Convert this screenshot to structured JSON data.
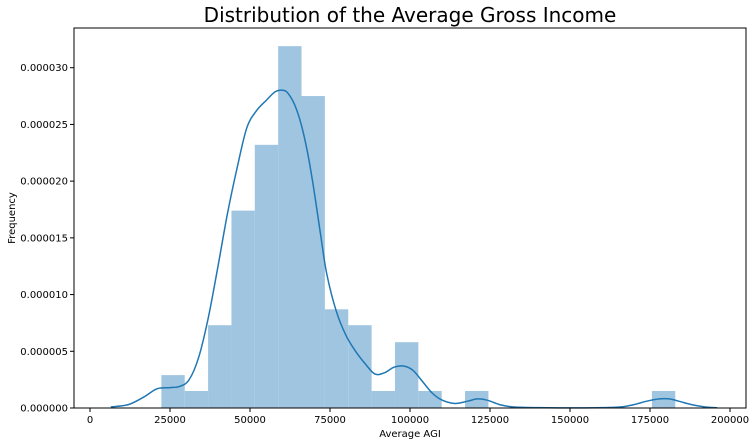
{
  "chart_data": {
    "type": "bar",
    "title": "Distribution of the Average Gross Income",
    "xlabel": "Average AGI",
    "ylabel": "Frequency",
    "xlim": [
      -5000,
      205000
    ],
    "ylim": [
      0,
      3.35e-05
    ],
    "x_ticks": [
      0,
      25000,
      50000,
      75000,
      100000,
      125000,
      150000,
      175000,
      200000
    ],
    "x_tick_labels": [
      "0",
      "25000",
      "50000",
      "75000",
      "100000",
      "125000",
      "150000",
      "175000",
      "200000"
    ],
    "y_ticks": [
      0,
      5e-06,
      1e-05,
      1.5e-05,
      2e-05,
      2.5e-05,
      3e-05
    ],
    "y_tick_labels": [
      "0.000000",
      "0.000005",
      "0.000010",
      "0.000015",
      "0.000020",
      "0.000025",
      "0.000030"
    ],
    "histogram": {
      "bin_width": 7300,
      "bins": [
        {
          "start": 22300,
          "value": 2.9e-06
        },
        {
          "start": 29600,
          "value": 1.5e-06
        },
        {
          "start": 36900,
          "value": 7.3e-06
        },
        {
          "start": 44200,
          "value": 1.74e-05
        },
        {
          "start": 51500,
          "value": 2.32e-05
        },
        {
          "start": 58800,
          "value": 3.19e-05
        },
        {
          "start": 66100,
          "value": 2.75e-05
        },
        {
          "start": 73400,
          "value": 8.7e-06
        },
        {
          "start": 80700,
          "value": 7.3e-06
        },
        {
          "start": 88000,
          "value": 1.5e-06
        },
        {
          "start": 95300,
          "value": 5.8e-06
        },
        {
          "start": 102600,
          "value": 1.5e-06
        },
        {
          "start": 109900,
          "value": 0
        },
        {
          "start": 117200,
          "value": 1.5e-06
        },
        {
          "start": 124500,
          "value": 0
        },
        {
          "start": 131800,
          "value": 0
        },
        {
          "start": 139100,
          "value": 0
        },
        {
          "start": 146400,
          "value": 0
        },
        {
          "start": 153700,
          "value": 0
        },
        {
          "start": 161000,
          "value": 0
        },
        {
          "start": 168300,
          "value": 0
        },
        {
          "start": 175600,
          "value": 1.5e-06
        }
      ]
    },
    "kde": {
      "x": [
        6500,
        12000,
        17000,
        21000,
        25000,
        28000,
        31000,
        34000,
        37000,
        40000,
        43000,
        46000,
        49000,
        52000,
        55000,
        58000,
        60500,
        62000,
        64000,
        66000,
        68000,
        70000,
        72000,
        74000,
        77000,
        80000,
        83000,
        86000,
        89000,
        92000,
        95000,
        98000,
        101000,
        104000,
        107000,
        110000,
        114000,
        118000,
        121000,
        124000,
        128000,
        132000,
        140000,
        150000,
        160000,
        166000,
        170000,
        174000,
        178000,
        181000,
        184000,
        188000,
        192000,
        196000
      ],
      "y": [
        1e-07,
        3e-07,
        1e-06,
        1.7e-06,
        1.8e-06,
        1.9e-06,
        2.5e-06,
        4.5e-06,
        8e-06,
        1.25e-05,
        1.72e-05,
        2.12e-05,
        2.47e-05,
        2.62e-05,
        2.71e-05,
        2.79e-05,
        2.8e-05,
        2.77e-05,
        2.67e-05,
        2.5e-05,
        2.25e-05,
        1.92e-05,
        1.54e-05,
        1.18e-05,
        8.5e-06,
        6.4e-06,
        5e-06,
        3.9e-06,
        3e-06,
        3.1e-06,
        3.6e-06,
        3.7e-06,
        3.3e-06,
        2.3e-06,
        1.3e-06,
        7e-07,
        4e-07,
        6e-07,
        8e-07,
        7e-07,
        3e-07,
        1e-07,
        3e-08,
        1e-08,
        3e-08,
        1e-07,
        3e-07,
        6e-07,
        8e-07,
        8e-07,
        6e-07,
        3e-07,
        1e-07,
        2e-08
      ]
    },
    "grid": false,
    "legend": "none",
    "colors": {
      "bars": "#9fc5e0",
      "kde": "#1f77b4"
    }
  }
}
